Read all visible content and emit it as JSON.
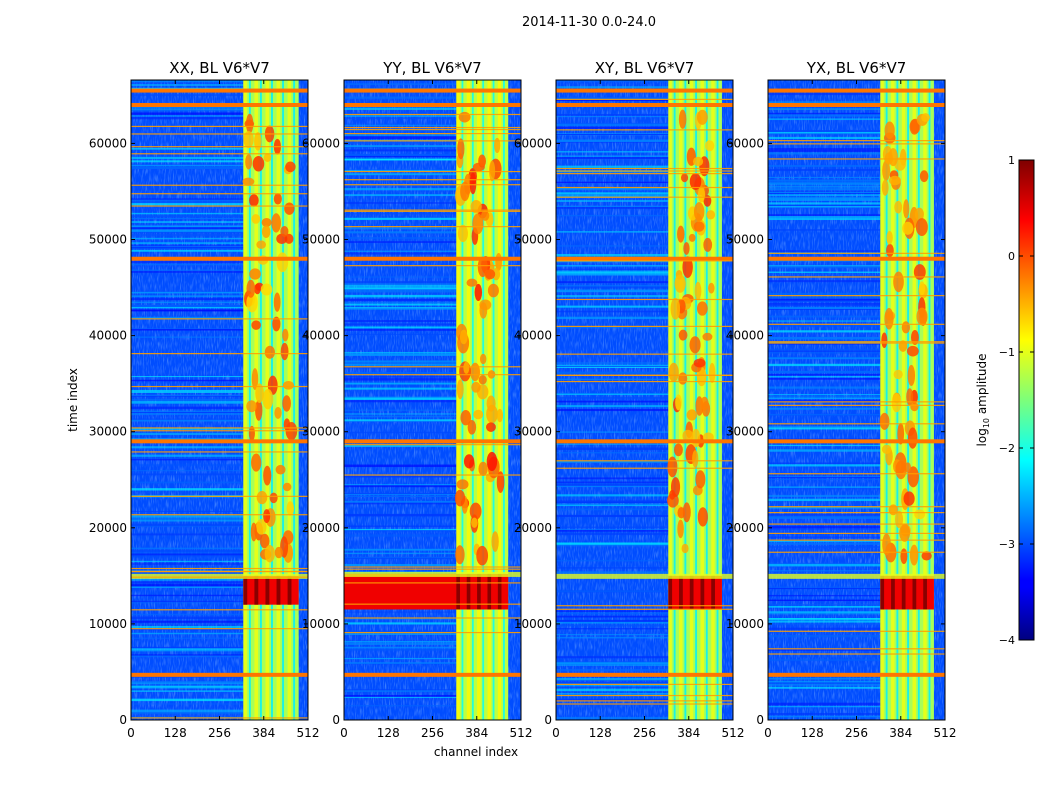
{
  "figure": {
    "suptitle": "2014-11-30 0.0-24.0",
    "xlabel": "channel index",
    "ylabel": "time index",
    "colorbar_label": "log",
    "colorbar_label_sub": "10",
    "colorbar_label_rest": " amplitude"
  },
  "chart_data": [
    {
      "type": "heatmap",
      "title": "XX, BL V6*V7",
      "polarization": "XX",
      "x_range": [
        0,
        512
      ],
      "y_range": [
        0,
        66600
      ],
      "x_ticks": [
        0,
        128,
        256,
        384,
        512
      ],
      "y_ticks": [
        0,
        10000,
        20000,
        30000,
        40000,
        50000,
        60000
      ],
      "background_level": -3.0,
      "bright_band_channels": [
        325,
        485
      ],
      "bright_band_level": -1.3,
      "flagged_rows": [
        4700,
        29000,
        48000,
        64000,
        65500
      ],
      "strong_event_rows": [
        12000,
        15000
      ],
      "colormap": "jet"
    },
    {
      "type": "heatmap",
      "title": "YY, BL V6*V7",
      "polarization": "YY",
      "x_range": [
        0,
        512
      ],
      "y_range": [
        0,
        66600
      ],
      "x_ticks": [
        0,
        128,
        256,
        384,
        512
      ],
      "y_ticks": [
        0,
        10000,
        20000,
        30000,
        40000,
        50000,
        60000
      ],
      "background_level": -3.0,
      "bright_band_channels": [
        325,
        475
      ],
      "bright_band_level": -1.2,
      "flagged_rows": [
        4700,
        29000,
        48000,
        64000,
        65500
      ],
      "strong_event_rows": [
        11500,
        15200
      ],
      "colormap": "jet"
    },
    {
      "type": "heatmap",
      "title": "XY, BL V6*V7",
      "polarization": "XY",
      "x_range": [
        0,
        512
      ],
      "y_range": [
        0,
        66600
      ],
      "x_ticks": [
        0,
        128,
        256,
        384,
        512
      ],
      "y_ticks": [
        0,
        10000,
        20000,
        30000,
        40000,
        50000,
        60000
      ],
      "background_level": -3.0,
      "bright_band_channels": [
        325,
        480
      ],
      "bright_band_level": -1.3,
      "flagged_rows": [
        4700,
        29000,
        48000,
        64000,
        65500
      ],
      "strong_event_rows": [
        11500,
        15000
      ],
      "colormap": "jet"
    },
    {
      "type": "heatmap",
      "title": "YX, BL V6*V7",
      "polarization": "YX",
      "x_range": [
        0,
        512
      ],
      "y_range": [
        0,
        66600
      ],
      "x_ticks": [
        0,
        128,
        256,
        384,
        512
      ],
      "y_ticks": [
        0,
        10000,
        20000,
        30000,
        40000,
        50000,
        60000
      ],
      "background_level": -3.0,
      "bright_band_channels": [
        325,
        480
      ],
      "bright_band_level": -1.3,
      "flagged_rows": [
        4700,
        29000,
        48000,
        64000,
        65500
      ],
      "strong_event_rows": [
        11500,
        15000
      ],
      "colormap": "jet"
    }
  ],
  "colorbar": {
    "range": [
      -4,
      1
    ],
    "ticks": [
      1,
      0,
      -1,
      -2,
      -3,
      -4
    ],
    "tick_labels": [
      "1",
      "0",
      "−1",
      "−2",
      "−3",
      "−4"
    ],
    "colormap": "jet"
  }
}
